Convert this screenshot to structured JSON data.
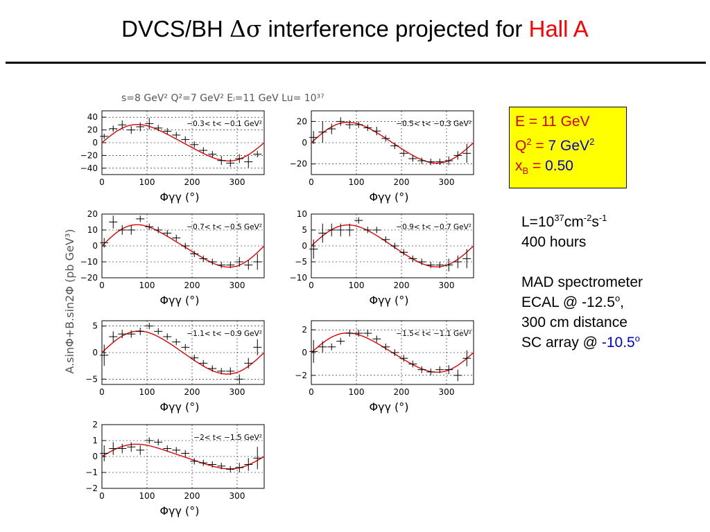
{
  "slide": {
    "title_prefix": "DVCS/BH ",
    "title_symbol": "Δσ",
    "title_mid": " interference projected for ",
    "title_highlight": "Hall A"
  },
  "figure": {
    "header": "s=8 GeV² Q²=7 GeV² Eᵢ=11 GeV Lu= 10³⁷",
    "y_axis_title": "A.sinΦ+B.sin2Φ (pb GeV³)",
    "x_axis_title": "Φγγ (°)"
  },
  "params_box": {
    "energy": "E = 11 GeV",
    "q2_prefix": "Q",
    "q2_sup": "2",
    "q2_eq": " = ",
    "q2_value": "7 GeV",
    "q2_value_sup": "2",
    "xb_prefix": "x",
    "xb_sub": "B",
    "xb_eq": " = ",
    "xb_value": "0.50"
  },
  "run_info": {
    "lumi_base": "L=10",
    "lumi_exp": "37",
    "lumi_unit1": "cm",
    "lumi_unit1_exp": "-2",
    "lumi_unit2": "s",
    "lumi_unit2_exp": "-1",
    "hours": "400 hours",
    "spectrometer": "MAD spectrometer",
    "ecal_prefix": "ECAL @ -12.5",
    "ecal_sup": "o",
    "ecal_suffix": ",",
    "distance": "300 cm distance",
    "sc_prefix": "SC array @ ",
    "sc_value": "-10.5",
    "sc_sup": "o"
  },
  "colors": {
    "fit_curve": "#e00000",
    "data_marker": "#000000",
    "params_box_bg": "#ffff00",
    "highlight_red": "#ff0000",
    "highlight_blue": "#0000cc"
  },
  "chart_data": [
    {
      "type": "scatter",
      "t_range": "−0.3< t< −0.1 GeV²",
      "xlim": [
        0,
        360
      ],
      "ylim": [
        -50,
        50
      ],
      "xticks": [
        0,
        100,
        200,
        300
      ],
      "yticks": [
        -40,
        -20,
        0,
        20,
        40
      ],
      "x": [
        5,
        25,
        45,
        65,
        85,
        105,
        125,
        145,
        165,
        185,
        205,
        225,
        245,
        265,
        285,
        305,
        325,
        345
      ],
      "y": [
        10,
        22,
        28,
        20,
        25,
        30,
        23,
        18,
        12,
        5,
        -3,
        -12,
        -18,
        -28,
        -32,
        -25,
        -30,
        -18
      ],
      "y_err": [
        4,
        5,
        7,
        6,
        7,
        9,
        5,
        5,
        5,
        5,
        5,
        5,
        5,
        7,
        6,
        7,
        9,
        5
      ],
      "fit": {
        "A": 28,
        "B": 3
      }
    },
    {
      "type": "scatter",
      "t_range": "−0.5< t< −0.3 GeV²",
      "xlim": [
        0,
        360
      ],
      "ylim": [
        -30,
        30
      ],
      "xticks": [
        0,
        100,
        200,
        300
      ],
      "yticks": [
        -20,
        0,
        20
      ],
      "x": [
        5,
        25,
        45,
        65,
        85,
        105,
        125,
        145,
        165,
        185,
        205,
        225,
        245,
        265,
        285,
        305,
        325,
        345
      ],
      "y": [
        5,
        10,
        13,
        20,
        17,
        17,
        14,
        11,
        4,
        -3,
        -10,
        -15,
        -17,
        -18,
        -18,
        -17,
        -12,
        -10
      ],
      "y_err": [
        6,
        10,
        5,
        4,
        4,
        3,
        3,
        4,
        3,
        3,
        3,
        3,
        3,
        3,
        3,
        4,
        4,
        9
      ],
      "fit": {
        "A": 19,
        "B": 1.5
      }
    },
    {
      "type": "scatter",
      "t_range": "−0.7< t< −0.5 GeV²",
      "xlim": [
        0,
        360
      ],
      "ylim": [
        -20,
        20
      ],
      "xticks": [
        0,
        100,
        200,
        300
      ],
      "yticks": [
        -20,
        -10,
        0,
        10,
        20
      ],
      "x": [
        5,
        25,
        45,
        65,
        85,
        105,
        125,
        145,
        165,
        185,
        205,
        225,
        245,
        265,
        285,
        305,
        325,
        345
      ],
      "y": [
        2,
        15,
        10,
        10,
        17,
        12,
        10,
        8,
        5,
        0,
        -5,
        -8,
        -10,
        -12,
        -12,
        -10,
        -12,
        -10
      ],
      "y_err": [
        3,
        4,
        3,
        3,
        2,
        2,
        2,
        2,
        2,
        2,
        2,
        2,
        2,
        2,
        2,
        3,
        3,
        5
      ],
      "fit": {
        "A": 13,
        "B": 1.5
      }
    },
    {
      "type": "scatter",
      "t_range": "−0.9< t< −0.7 GeV²",
      "xlim": [
        0,
        360
      ],
      "ylim": [
        -10,
        10
      ],
      "xticks": [
        0,
        100,
        200,
        300
      ],
      "yticks": [
        -10,
        -5,
        0,
        5,
        10
      ],
      "x": [
        5,
        25,
        45,
        65,
        85,
        105,
        125,
        145,
        165,
        185,
        205,
        225,
        245,
        265,
        285,
        305,
        325,
        345
      ],
      "y": [
        -1,
        4,
        5,
        5,
        5,
        8,
        5,
        5,
        2,
        0,
        -2,
        -4,
        -5,
        -6,
        -6,
        -6,
        -5,
        -4
      ],
      "y_err": [
        3,
        3,
        2,
        2,
        2,
        1,
        1,
        1,
        1,
        1,
        1,
        1,
        1,
        1,
        1,
        2,
        2,
        3
      ],
      "fit": {
        "A": 6.5,
        "B": 0.5
      }
    },
    {
      "type": "scatter",
      "t_range": "−1.1< t< −0.9 GeV²",
      "xlim": [
        0,
        360
      ],
      "ylim": [
        -6,
        6
      ],
      "xticks": [
        0,
        100,
        200,
        300
      ],
      "yticks": [
        -5,
        0,
        5
      ],
      "x": [
        5,
        25,
        45,
        65,
        85,
        105,
        125,
        145,
        165,
        185,
        205,
        225,
        245,
        265,
        285,
        305,
        325,
        345
      ],
      "y": [
        -0.5,
        3,
        3.5,
        3.5,
        4,
        5,
        4,
        3,
        2,
        1,
        -1,
        -2,
        -3,
        -3.5,
        -3.5,
        -5,
        -2,
        1
      ],
      "y_err": [
        2,
        1,
        0.8,
        0.7,
        0.7,
        0.6,
        0.6,
        0.6,
        0.6,
        0.6,
        0.6,
        0.6,
        0.6,
        0.6,
        0.7,
        0.9,
        1,
        1.5
      ],
      "fit": {
        "A": 4,
        "B": 0.3
      }
    },
    {
      "type": "scatter",
      "t_range": "−1.5< t< −1.1 GeV²",
      "xlim": [
        0,
        360
      ],
      "ylim": [
        -2.8,
        2.8
      ],
      "xticks": [
        0,
        100,
        200,
        300
      ],
      "yticks": [
        -2,
        0,
        2
      ],
      "x": [
        5,
        25,
        45,
        65,
        85,
        105,
        125,
        145,
        165,
        185,
        205,
        225,
        245,
        265,
        285,
        305,
        325,
        345
      ],
      "y": [
        0.1,
        0.5,
        0.5,
        1,
        1.7,
        1.7,
        1.7,
        1.2,
        0.5,
        0,
        -0.5,
        -1,
        -1.5,
        -1.7,
        -1.5,
        -1.5,
        -2,
        -0.5
      ],
      "y_err": [
        1,
        0.5,
        0.3,
        0.3,
        0.3,
        0.3,
        0.3,
        0.3,
        0.3,
        0.3,
        0.3,
        0.3,
        0.3,
        0.3,
        0.3,
        0.4,
        0.5,
        0.7
      ],
      "fit": {
        "A": 1.7,
        "B": 0.15
      }
    },
    {
      "type": "scatter",
      "t_range": "−2< t< −1.5 GeV²",
      "xlim": [
        0,
        360
      ],
      "ylim": [
        -2,
        2
      ],
      "xticks": [
        0,
        100,
        200,
        300
      ],
      "yticks": [
        -2,
        -1,
        0,
        1,
        2
      ],
      "x": [
        5,
        25,
        45,
        65,
        85,
        105,
        125,
        145,
        165,
        185,
        205,
        225,
        245,
        265,
        285,
        305,
        325,
        345
      ],
      "y": [
        0.2,
        0.5,
        0.5,
        0.6,
        0.4,
        1,
        0.9,
        0.5,
        0.4,
        0.2,
        -0.3,
        -0.4,
        -0.5,
        -0.6,
        -0.8,
        -0.7,
        -0.5,
        -0.1
      ],
      "y_err": [
        0.5,
        0.4,
        0.3,
        0.3,
        0.3,
        0.2,
        0.2,
        0.2,
        0.2,
        0.2,
        0.2,
        0.2,
        0.2,
        0.2,
        0.2,
        0.3,
        0.4,
        0.7
      ],
      "fit": {
        "A": 0.75,
        "B": 0.1
      }
    }
  ]
}
